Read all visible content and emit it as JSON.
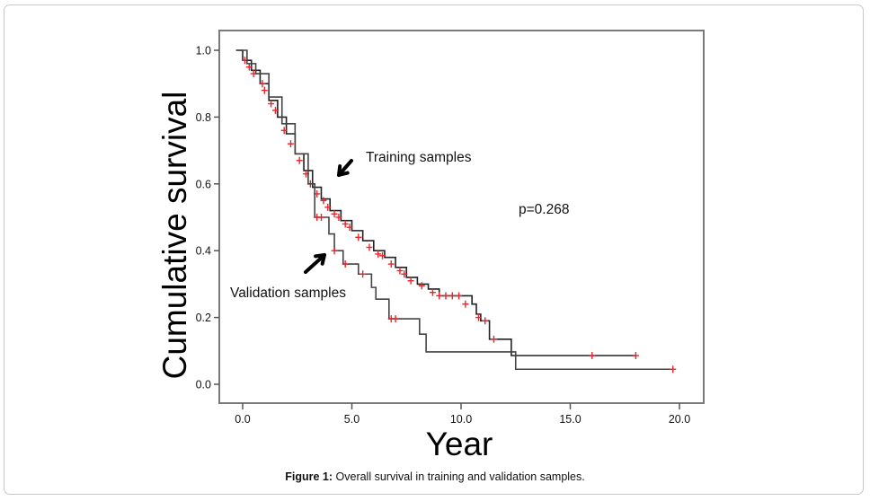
{
  "chart_data": {
    "type": "line",
    "subtype": "kaplan-meier",
    "title": "",
    "xlabel": "Year",
    "ylabel": "Cumulative survival",
    "xlim": [
      -1.1,
      21.1
    ],
    "ylim": [
      -0.05,
      1.06
    ],
    "xticks": [
      0.0,
      5.0,
      10.0,
      15.0,
      20.0
    ],
    "xtick_labels": [
      "0.0",
      "5.0",
      "10.0",
      "15.0",
      "20.0"
    ],
    "yticks": [
      0.0,
      0.2,
      0.4,
      0.6,
      0.8,
      1.0
    ],
    "ytick_labels": [
      "0.0",
      "0.2",
      "0.4",
      "0.6",
      "0.8",
      "1.0"
    ],
    "grid": false,
    "legend": "none",
    "series": [
      {
        "name": "Training samples",
        "color": "#222222",
        "censor_color": "#e8262b",
        "steps": [
          [
            -0.3,
            1.0
          ],
          [
            0.0,
            0.97
          ],
          [
            0.4,
            0.94
          ],
          [
            0.8,
            0.9
          ],
          [
            1.2,
            0.85
          ],
          [
            1.6,
            0.8
          ],
          [
            2.0,
            0.75
          ],
          [
            2.4,
            0.69
          ],
          [
            2.8,
            0.64
          ],
          [
            3.2,
            0.59
          ],
          [
            3.6,
            0.555
          ],
          [
            4.0,
            0.52
          ],
          [
            4.5,
            0.49
          ],
          [
            5.0,
            0.46
          ],
          [
            5.5,
            0.43
          ],
          [
            6.0,
            0.4
          ],
          [
            6.5,
            0.38
          ],
          [
            7.0,
            0.35
          ],
          [
            7.5,
            0.32
          ],
          [
            8.0,
            0.3
          ],
          [
            8.5,
            0.285
          ],
          [
            9.0,
            0.265
          ],
          [
            10.5,
            0.24
          ],
          [
            10.7,
            0.21
          ],
          [
            10.9,
            0.19
          ],
          [
            11.3,
            0.16
          ],
          [
            11.3,
            0.135
          ],
          [
            12.3,
            0.135
          ],
          [
            12.3,
            0.086
          ],
          [
            18.0,
            0.086
          ]
        ],
        "censored": [
          [
            0.1,
            0.97
          ],
          [
            0.3,
            0.95
          ],
          [
            0.5,
            0.93
          ],
          [
            0.9,
            0.9
          ],
          [
            1.0,
            0.88
          ],
          [
            1.3,
            0.84
          ],
          [
            1.5,
            0.82
          ],
          [
            1.9,
            0.76
          ],
          [
            2.2,
            0.72
          ],
          [
            2.6,
            0.67
          ],
          [
            2.9,
            0.63
          ],
          [
            3.1,
            0.6
          ],
          [
            3.4,
            0.57
          ],
          [
            3.7,
            0.55
          ],
          [
            3.9,
            0.53
          ],
          [
            4.2,
            0.51
          ],
          [
            4.4,
            0.5
          ],
          [
            4.7,
            0.48
          ],
          [
            4.9,
            0.47
          ],
          [
            5.3,
            0.44
          ],
          [
            5.8,
            0.41
          ],
          [
            6.2,
            0.39
          ],
          [
            6.4,
            0.385
          ],
          [
            6.8,
            0.36
          ],
          [
            7.2,
            0.34
          ],
          [
            7.4,
            0.33
          ],
          [
            7.7,
            0.31
          ],
          [
            8.2,
            0.295
          ],
          [
            8.7,
            0.275
          ],
          [
            9.0,
            0.265
          ],
          [
            9.3,
            0.265
          ],
          [
            9.6,
            0.265
          ],
          [
            9.9,
            0.265
          ],
          [
            10.2,
            0.24
          ],
          [
            10.8,
            0.2
          ],
          [
            11.1,
            0.19
          ],
          [
            11.5,
            0.135
          ],
          [
            16.0,
            0.086
          ],
          [
            18.0,
            0.086
          ]
        ]
      },
      {
        "name": "Validation samples",
        "color": "#444444",
        "steps": [
          [
            -0.3,
            1.0
          ],
          [
            0.2,
            0.96
          ],
          [
            0.6,
            0.93
          ],
          [
            1.2,
            0.86
          ],
          [
            1.8,
            0.78
          ],
          [
            2.4,
            0.69
          ],
          [
            3.0,
            0.6
          ],
          [
            3.3,
            0.55
          ],
          [
            3.3,
            0.5
          ],
          [
            3.8,
            0.5
          ],
          [
            3.95,
            0.45
          ],
          [
            4.2,
            0.4
          ],
          [
            4.6,
            0.36
          ],
          [
            5.3,
            0.33
          ],
          [
            5.9,
            0.29
          ],
          [
            6.1,
            0.255
          ],
          [
            6.7,
            0.196
          ],
          [
            8.1,
            0.196
          ],
          [
            8.1,
            0.15
          ],
          [
            8.4,
            0.15
          ],
          [
            8.4,
            0.097
          ],
          [
            12.5,
            0.097
          ],
          [
            12.5,
            0.045
          ],
          [
            19.7,
            0.045
          ]
        ],
        "censored": [
          [
            3.4,
            0.5
          ],
          [
            3.6,
            0.5
          ],
          [
            4.2,
            0.4
          ],
          [
            4.7,
            0.36
          ],
          [
            5.5,
            0.33
          ],
          [
            6.8,
            0.196
          ],
          [
            7.0,
            0.196
          ],
          [
            19.7,
            0.045
          ]
        ]
      }
    ],
    "annotations": [
      {
        "text": "Training samples",
        "at": [
          5.7,
          0.68
        ],
        "arrow_to": [
          4.3,
          0.62
        ]
      },
      {
        "text": "Validation samples",
        "at": [
          -0.5,
          0.27
        ],
        "arrow_to": [
          4.0,
          0.39
        ]
      },
      {
        "text": "p=0.268",
        "at": [
          12.5,
          0.52
        ]
      }
    ]
  },
  "caption": {
    "label": "Figure 1:",
    "text": " Overall survival in training and validation samples."
  }
}
